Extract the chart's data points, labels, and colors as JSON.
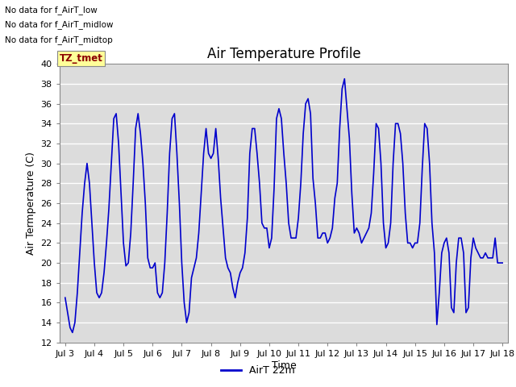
{
  "title": "Air Temperature Profile",
  "xlabel": "Time",
  "ylabel": "Air Termperature (C)",
  "ylim": [
    12,
    40
  ],
  "yticks": [
    12,
    14,
    16,
    18,
    20,
    22,
    24,
    26,
    28,
    30,
    32,
    34,
    36,
    38,
    40
  ],
  "xtick_labels": [
    "Jul 3",
    "Jul 4",
    "Jul 5",
    "Jul 6",
    "Jul 7",
    "Jul 8",
    "Jul 9",
    "Jul 10",
    "Jul 11",
    "Jul 12",
    "Jul 13",
    "Jul 14",
    "Jul 15",
    "Jul 16",
    "Jul 17",
    "Jul 18"
  ],
  "line_color": "#0000CC",
  "line_width": 1.2,
  "legend_label": "AirT 22m",
  "legend_line_color": "#0000CC",
  "bg_color": "#DCDCDC",
  "grid_color": "#FFFFFF",
  "annotations": [
    "No data for f_AirT_low",
    "No data for f_AirT_midlow",
    "No data for f_AirT_midtop"
  ],
  "tz_label": "TZ_tmet",
  "x_values": [
    0,
    0.083,
    0.167,
    0.25,
    0.333,
    0.417,
    0.5,
    0.583,
    0.667,
    0.75,
    0.833,
    0.917,
    1,
    1.083,
    1.167,
    1.25,
    1.333,
    1.417,
    1.5,
    1.583,
    1.667,
    1.75,
    1.833,
    1.917,
    2,
    2.083,
    2.167,
    2.25,
    2.333,
    2.417,
    2.5,
    2.583,
    2.667,
    2.75,
    2.833,
    2.917,
    3,
    3.083,
    3.167,
    3.25,
    3.333,
    3.417,
    3.5,
    3.583,
    3.667,
    3.75,
    3.833,
    3.917,
    4,
    4.083,
    4.167,
    4.25,
    4.333,
    4.417,
    4.5,
    4.583,
    4.667,
    4.75,
    4.833,
    4.917,
    5,
    5.083,
    5.167,
    5.25,
    5.333,
    5.417,
    5.5,
    5.583,
    5.667,
    5.75,
    5.833,
    5.917,
    6,
    6.083,
    6.167,
    6.25,
    6.333,
    6.417,
    6.5,
    6.583,
    6.667,
    6.75,
    6.833,
    6.917,
    7,
    7.083,
    7.167,
    7.25,
    7.333,
    7.417,
    7.5,
    7.583,
    7.667,
    7.75,
    7.833,
    7.917,
    8,
    8.083,
    8.167,
    8.25,
    8.333,
    8.417,
    8.5,
    8.583,
    8.667,
    8.75,
    8.833,
    8.917,
    9,
    9.083,
    9.167,
    9.25,
    9.333,
    9.417,
    9.5,
    9.583,
    9.667,
    9.75,
    9.833,
    9.917,
    10,
    10.083,
    10.167,
    10.25,
    10.333,
    10.417,
    10.5,
    10.583,
    10.667,
    10.75,
    10.833,
    10.917,
    11,
    11.083,
    11.167,
    11.25,
    11.333,
    11.417,
    11.5,
    11.583,
    11.667,
    11.75,
    11.833,
    11.917,
    12,
    12.083,
    12.167,
    12.25,
    12.333,
    12.417,
    12.5,
    12.583,
    12.667,
    12.75,
    12.833,
    12.917,
    13,
    13.083,
    13.167,
    13.25,
    13.333,
    13.417,
    13.5,
    13.583,
    13.667,
    13.75,
    13.833,
    13.917,
    14,
    14.083,
    14.167,
    14.25,
    14.333,
    14.417,
    14.5,
    14.583,
    14.667,
    14.75,
    14.833,
    14.917,
    15
  ],
  "y_values": [
    16.5,
    15.0,
    13.5,
    13.0,
    14.0,
    17.0,
    21.0,
    25.0,
    28.0,
    30.0,
    28.0,
    24.0,
    20.0,
    17.0,
    16.5,
    17.0,
    19.0,
    22.0,
    25.5,
    30.0,
    34.5,
    35.0,
    32.0,
    27.0,
    22.0,
    19.7,
    20.0,
    23.0,
    28.0,
    33.5,
    35.0,
    33.0,
    30.0,
    26.0,
    20.5,
    19.5,
    19.5,
    20.0,
    17.0,
    16.5,
    17.0,
    20.0,
    25.0,
    31.0,
    34.5,
    35.0,
    31.0,
    26.0,
    20.0,
    16.0,
    14.0,
    15.0,
    18.5,
    19.5,
    20.5,
    23.0,
    27.0,
    31.0,
    33.5,
    31.0,
    30.5,
    31.0,
    33.5,
    30.5,
    26.5,
    23.5,
    20.5,
    19.5,
    19.0,
    17.5,
    16.5,
    18.0,
    19.0,
    19.5,
    21.0,
    24.5,
    31.0,
    33.5,
    33.5,
    31.0,
    28.0,
    24.0,
    23.5,
    23.5,
    21.5,
    22.5,
    27.5,
    34.5,
    35.5,
    34.5,
    31.0,
    28.0,
    24.0,
    22.5,
    22.5,
    22.5,
    24.5,
    28.0,
    33.0,
    36.0,
    36.5,
    35.0,
    28.5,
    26.0,
    22.5,
    22.5,
    23.0,
    23.0,
    22.0,
    22.5,
    23.5,
    26.5,
    28.0,
    33.5,
    37.5,
    38.5,
    35.5,
    32.5,
    27.0,
    23.0,
    23.5,
    23.0,
    22.0,
    22.5,
    23.0,
    23.5,
    25.0,
    29.0,
    34.0,
    33.5,
    30.0,
    24.0,
    21.5,
    22.0,
    24.0,
    30.0,
    34.0,
    34.0,
    33.0,
    30.0,
    25.0,
    22.0,
    22.0,
    21.5,
    22.0,
    22.0,
    24.0,
    29.5,
    34.0,
    33.5,
    30.0,
    24.0,
    21.0,
    13.8,
    17.0,
    21.0,
    22.0,
    22.5,
    21.0,
    15.5,
    15.0,
    20.0,
    22.5,
    22.5,
    21.0,
    15.0,
    15.5,
    20.5,
    22.5,
    21.5,
    21.0,
    20.5,
    20.5,
    21.0,
    20.5,
    20.5,
    20.5,
    22.5,
    20.0,
    20.0,
    20.0
  ]
}
